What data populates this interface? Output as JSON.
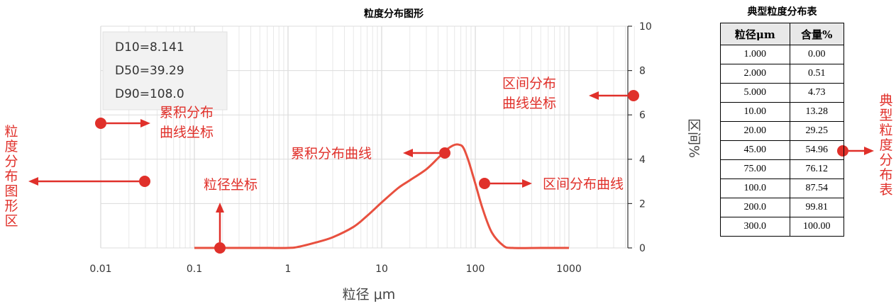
{
  "chart_data": {
    "type": "line",
    "title": "粒度分布图形",
    "xlabel": "粒径 μm",
    "ylabel": "区间%",
    "xscale": "log",
    "xlim": [
      0.01,
      5000
    ],
    "ylim": [
      0,
      10
    ],
    "xticks": [
      {
        "value": 0.01,
        "label": "0.01"
      },
      {
        "value": 0.1,
        "label": "0.1"
      },
      {
        "value": 1,
        "label": "1"
      },
      {
        "value": 10,
        "label": "10"
      },
      {
        "value": 100,
        "label": "100"
      },
      {
        "value": 1000,
        "label": "1000"
      }
    ],
    "yticks": [
      {
        "value": 0,
        "label": "0"
      },
      {
        "value": 2,
        "label": "2"
      },
      {
        "value": 4,
        "label": "4"
      },
      {
        "value": 6,
        "label": "6"
      },
      {
        "value": 8,
        "label": "8"
      },
      {
        "value": 10,
        "label": "10"
      }
    ],
    "grid": true,
    "series": [
      {
        "color": "#e8503f",
        "x": [
          0.1,
          0.5,
          1.0,
          1.3,
          2,
          3,
          5,
          7,
          10,
          15,
          20,
          30,
          40,
          50,
          60,
          68,
          75,
          85,
          100,
          120,
          150,
          200,
          250,
          500,
          1000
        ],
        "y": [
          0,
          0,
          0,
          0.05,
          0.25,
          0.48,
          0.95,
          1.45,
          2.05,
          2.7,
          3.05,
          3.55,
          4.05,
          4.45,
          4.65,
          4.65,
          4.5,
          3.9,
          2.9,
          1.75,
          0.7,
          0.1,
          0,
          0,
          0
        ]
      }
    ]
  },
  "stats": [
    "D10=8.141",
    "D50=39.29",
    "D90=108.0"
  ],
  "annotations": {
    "cumulative_axis": [
      "累积分布",
      "曲线坐标"
    ],
    "interval_axis": [
      "区间分布",
      "曲线坐标"
    ],
    "cumulative_curve": "累积分布曲线",
    "interval_curve": "区间分布曲线",
    "size_axis": "粒径坐标",
    "plot_area": "粒度分布图形区",
    "table": "典型粒度分布表"
  },
  "table": {
    "title": "典型粒度分布表",
    "headers": [
      "粒径μm",
      "含量%"
    ],
    "rows": [
      [
        "1.000",
        "0.00"
      ],
      [
        "2.000",
        "0.51"
      ],
      [
        "5.000",
        "4.73"
      ],
      [
        "10.00",
        "13.28"
      ],
      [
        "20.00",
        "29.25"
      ],
      [
        "45.00",
        "54.96"
      ],
      [
        "75.00",
        "76.12"
      ],
      [
        "100.0",
        "87.54"
      ],
      [
        "200.0",
        "99.81"
      ],
      [
        "300.0",
        "100.00"
      ]
    ]
  },
  "colors": {
    "annotation": "#e0302a",
    "curve": "#e8503f",
    "grid": "#e6e6e6",
    "axis_text": "#333333"
  }
}
